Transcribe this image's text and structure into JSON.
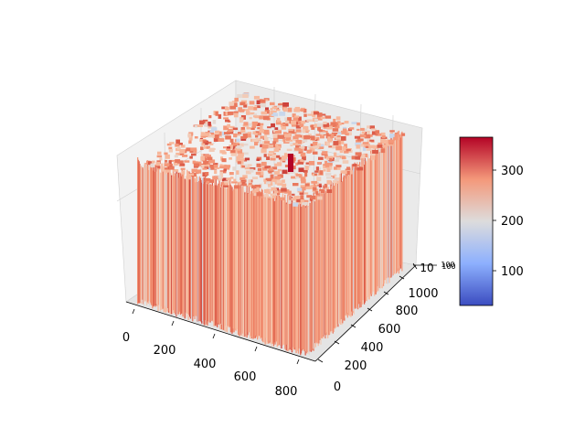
{
  "chart_data": {
    "type": "surface3d",
    "colormap": "coolwarm",
    "x_axis": {
      "ticks": [
        "0",
        "200",
        "400",
        "600",
        "800"
      ],
      "range": [
        0,
        850
      ]
    },
    "y_axis": {
      "ticks": [
        "0",
        "200",
        "400",
        "600",
        "800",
        "1000"
      ],
      "range": [
        0,
        1100
      ]
    },
    "z_axis": {
      "ticks": [
        "10",
        "100"
      ],
      "note": "z tick labels are overlapped and compressed at the right edge"
    },
    "colorbar": {
      "ticks": [
        "100",
        "200",
        "300"
      ],
      "range": [
        30,
        365
      ]
    },
    "grid": true
  }
}
